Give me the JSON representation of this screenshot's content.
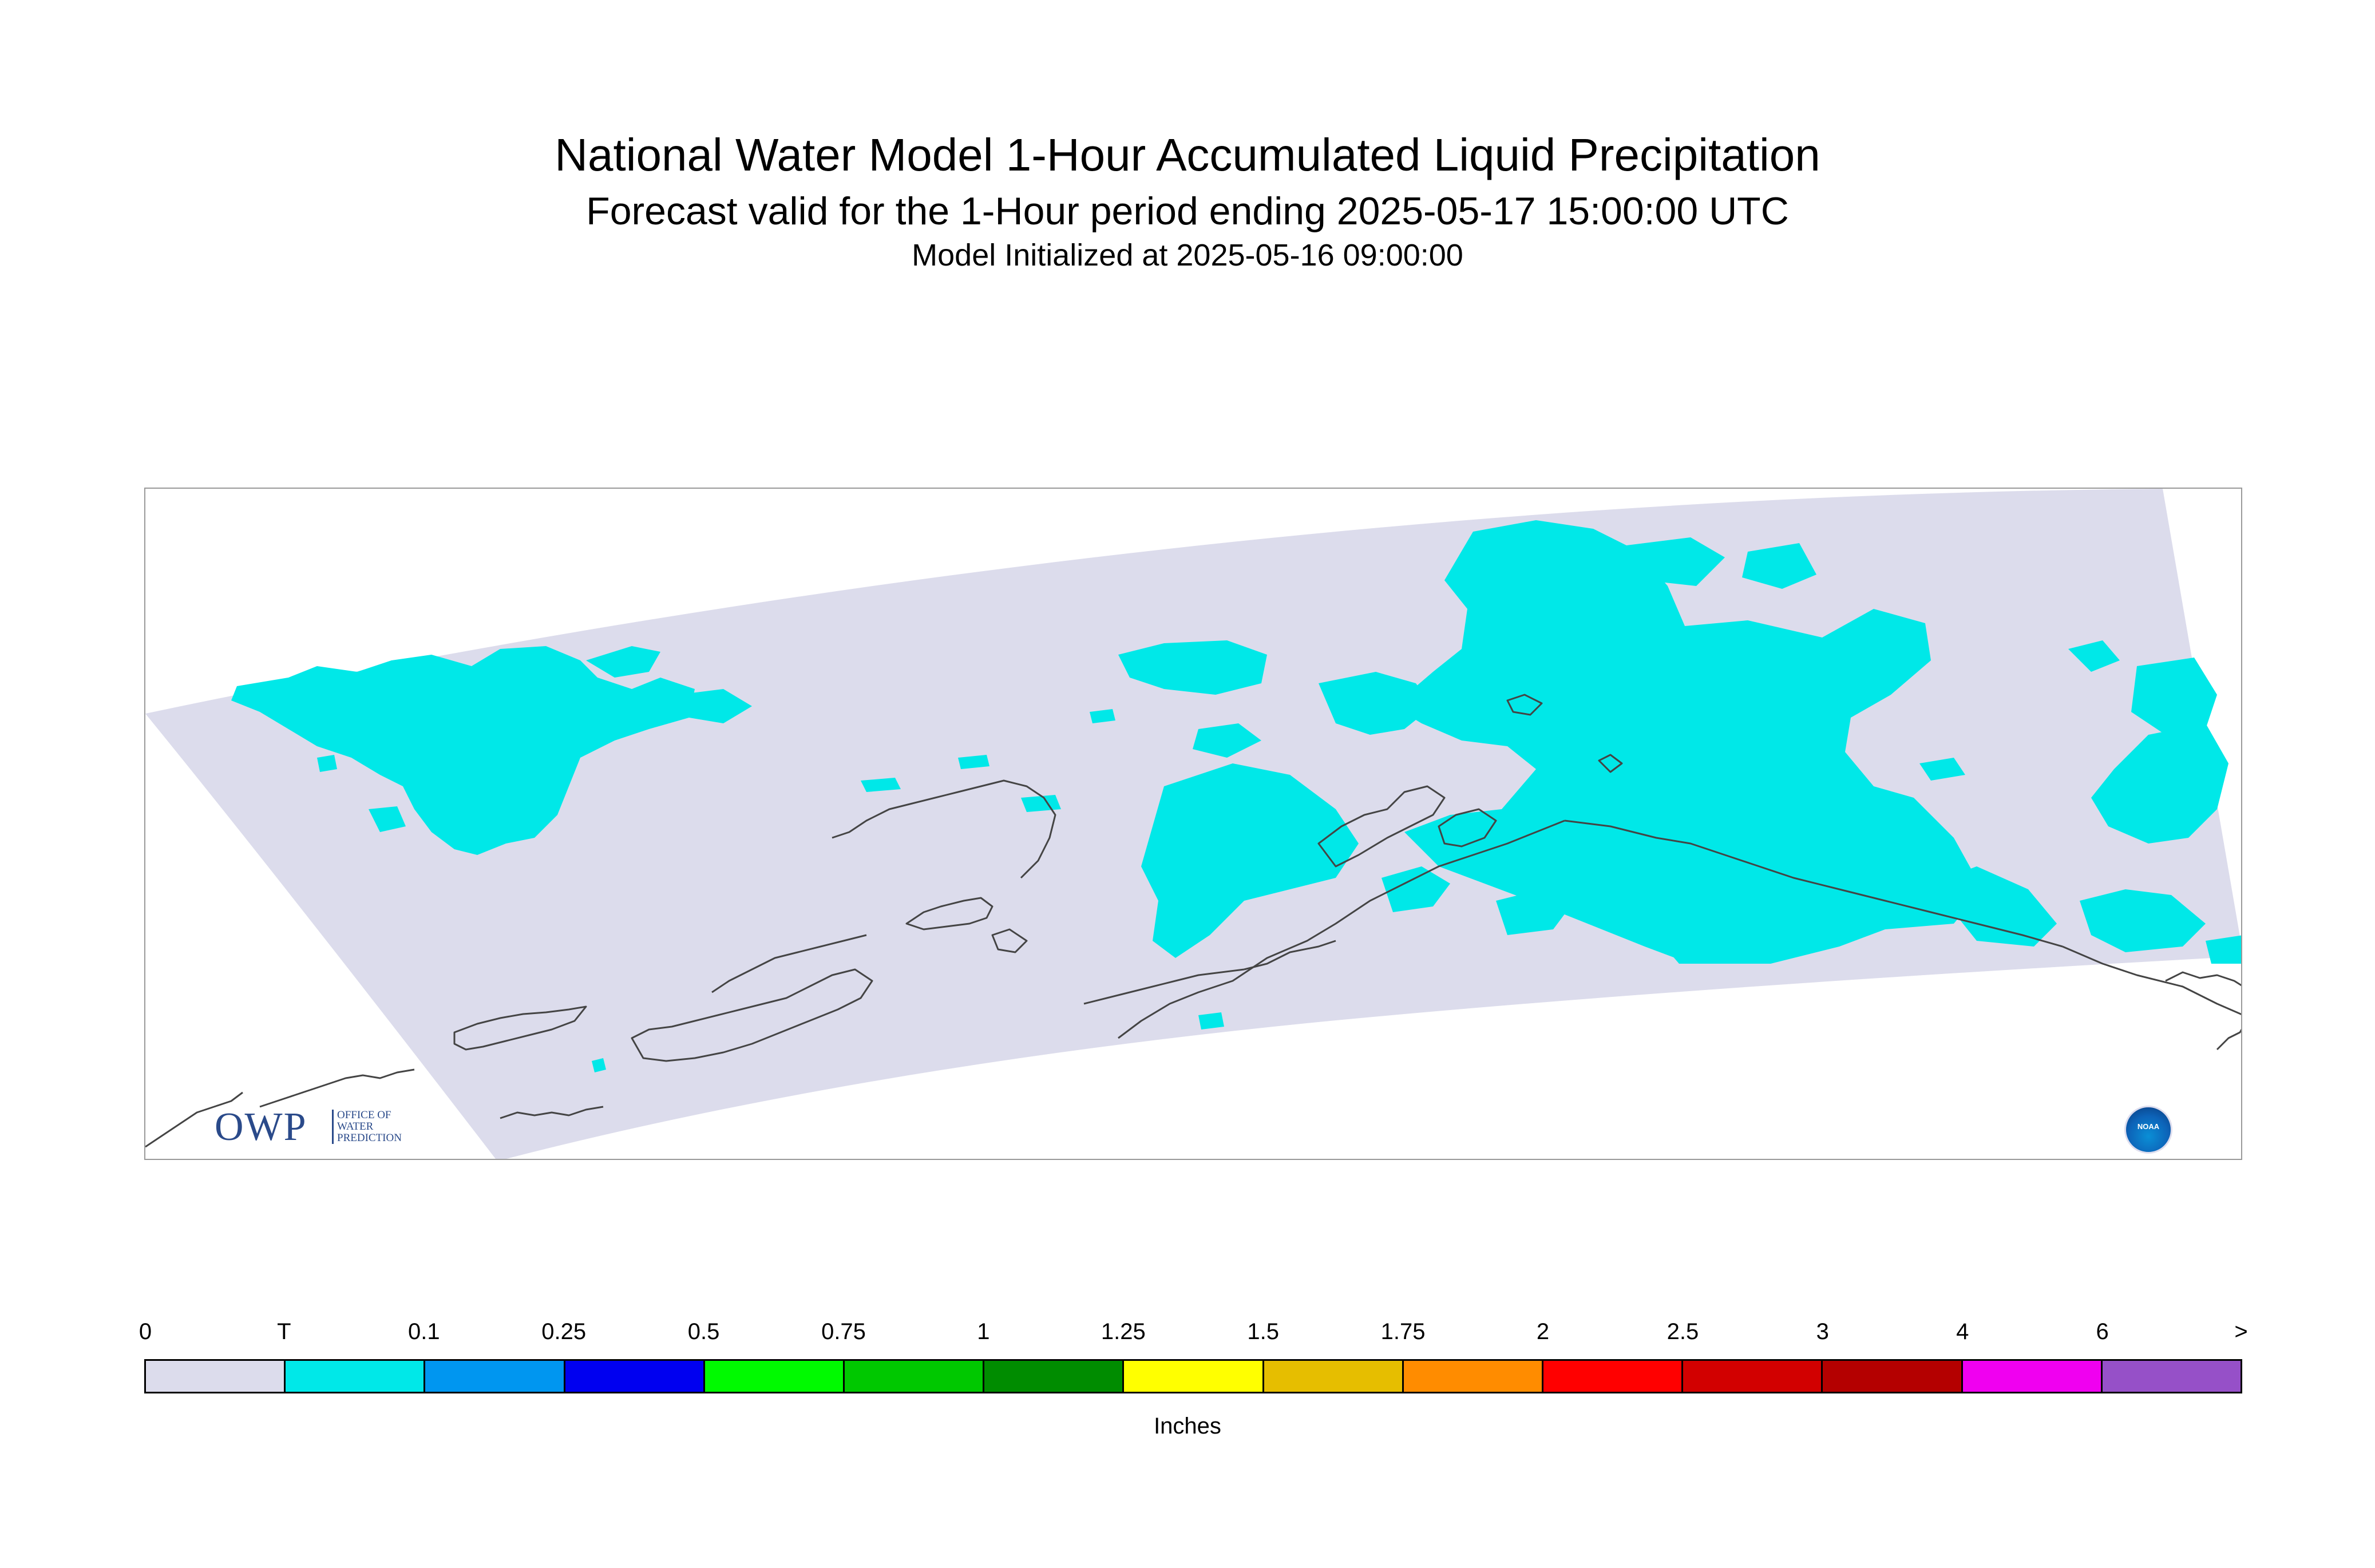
{
  "header": {
    "title": "National Water Model 1-Hour Accumulated Liquid Precipitation",
    "subtitle": "Forecast valid for the 1-Hour period ending 2025-05-17 15:00:00 UTC",
    "init": "Model Initialized at 2025-05-16 09:00:00"
  },
  "logos": {
    "owp_big": "OWP",
    "owp_line1": "OFFICE OF",
    "owp_line2": "WATER",
    "owp_line3": "PREDICTION",
    "noaa": "NOAA"
  },
  "legend": {
    "units": "Inches",
    "ticks": [
      "0",
      "T",
      "0.1",
      "0.25",
      "0.5",
      "0.75",
      "1",
      "1.25",
      "1.5",
      "1.75",
      "2",
      "2.5",
      "3",
      "4",
      "6",
      ">"
    ],
    "colors": [
      "#dcdcec",
      "#00e8e8",
      "#0096f0",
      "#0000f0",
      "#00fa00",
      "#00c800",
      "#008c00",
      "#ffff00",
      "#e6be00",
      "#ff8c00",
      "#ff0000",
      "#d20000",
      "#b40000",
      "#f000f0",
      "#9650c8"
    ]
  },
  "map": {
    "domain_fill": "#dcdcec",
    "precip_fill": "#00e8e8",
    "coast_color": "#444444"
  }
}
